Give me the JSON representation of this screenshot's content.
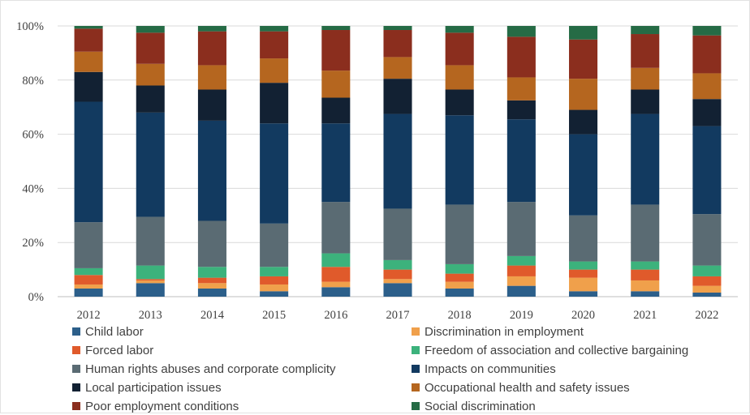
{
  "chart_data": {
    "type": "bar",
    "stacked": true,
    "categories": [
      "2012",
      "2013",
      "2014",
      "2015",
      "2016",
      "2017",
      "2018",
      "2019",
      "2020",
      "2021",
      "2022"
    ],
    "ylim": [
      0,
      100
    ],
    "yticks": [
      "0%",
      "20%",
      "40%",
      "60%",
      "80%",
      "100%"
    ],
    "ytick_values": [
      0,
      20,
      40,
      60,
      80,
      100
    ],
    "grid": true,
    "legend_position": "bottom",
    "series": [
      {
        "name": "Child labor",
        "color": "#2c5f8a",
        "values": [
          3,
          5,
          3,
          2,
          3.5,
          5,
          3,
          4,
          2,
          2,
          1.5
        ]
      },
      {
        "name": "Discrimination in employment",
        "color": "#f0a04b",
        "values": [
          1.5,
          1,
          2,
          2.5,
          2,
          1.5,
          2.5,
          3.5,
          5,
          4,
          2.5
        ]
      },
      {
        "name": "Forced labor",
        "color": "#e05a2b",
        "values": [
          3.5,
          0.5,
          2,
          3,
          5.5,
          3.5,
          3,
          4,
          3,
          4,
          3.5
        ]
      },
      {
        "name": "Freedom of association and collective bargaining",
        "color": "#3cb27c",
        "values": [
          2.5,
          5,
          4,
          3.5,
          5,
          3.5,
          3.5,
          3.5,
          3,
          3,
          4
        ]
      },
      {
        "name": "Human rights abuses and corporate complicity",
        "color": "#5a6b73",
        "values": [
          17,
          18,
          17,
          16,
          19,
          19,
          22,
          20,
          17,
          21,
          19
        ]
      },
      {
        "name": "Impacts on communities",
        "color": "#123a60",
        "values": [
          44.5,
          38.5,
          37,
          37,
          29,
          35,
          33,
          30.5,
          30,
          33.5,
          32.5
        ]
      },
      {
        "name": "Local participation issues",
        "color": "#122133",
        "values": [
          11,
          10,
          11.5,
          15,
          9.5,
          13,
          9.5,
          7,
          9,
          9,
          10
        ]
      },
      {
        "name": "Occupational health and safety issues",
        "color": "#b5661f",
        "values": [
          7.5,
          8,
          9,
          9,
          10,
          8,
          9,
          8.5,
          11.5,
          8,
          9.5
        ]
      },
      {
        "name": "Poor employment conditions",
        "color": "#8b2e1e",
        "values": [
          8.5,
          11.5,
          12.5,
          10,
          15,
          10,
          12,
          15,
          14.5,
          12.5,
          14
        ]
      },
      {
        "name": "Social discrimination",
        "color": "#256b45",
        "values": [
          1,
          2.5,
          2,
          2,
          1.5,
          1.5,
          2.5,
          4,
          5,
          3,
          3.5
        ]
      }
    ]
  }
}
